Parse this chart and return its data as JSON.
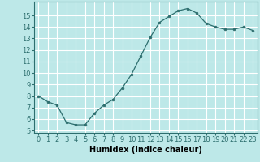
{
  "x": [
    0,
    1,
    2,
    3,
    4,
    5,
    6,
    7,
    8,
    9,
    10,
    11,
    12,
    13,
    14,
    15,
    16,
    17,
    18,
    19,
    20,
    21,
    22,
    23
  ],
  "y": [
    8.0,
    7.5,
    7.2,
    5.7,
    5.5,
    5.5,
    6.5,
    7.2,
    7.7,
    8.7,
    9.9,
    11.5,
    13.1,
    14.4,
    14.9,
    15.4,
    15.6,
    15.2,
    14.3,
    14.0,
    13.8,
    13.8,
    14.0,
    13.7
  ],
  "line_color": "#2d6e6e",
  "marker": "o",
  "marker_size": 2.0,
  "bg_color": "#bde8e8",
  "grid_color": "#ffffff",
  "xlabel": "Humidex (Indice chaleur)",
  "xlabel_fontsize": 7,
  "tick_fontsize": 6,
  "xlim": [
    -0.5,
    23.5
  ],
  "ylim": [
    4.8,
    16.2
  ],
  "yticks": [
    5,
    6,
    7,
    8,
    9,
    10,
    11,
    12,
    13,
    14,
    15
  ],
  "xticks": [
    0,
    1,
    2,
    3,
    4,
    5,
    6,
    7,
    8,
    9,
    10,
    11,
    12,
    13,
    14,
    15,
    16,
    17,
    18,
    19,
    20,
    21,
    22,
    23
  ]
}
